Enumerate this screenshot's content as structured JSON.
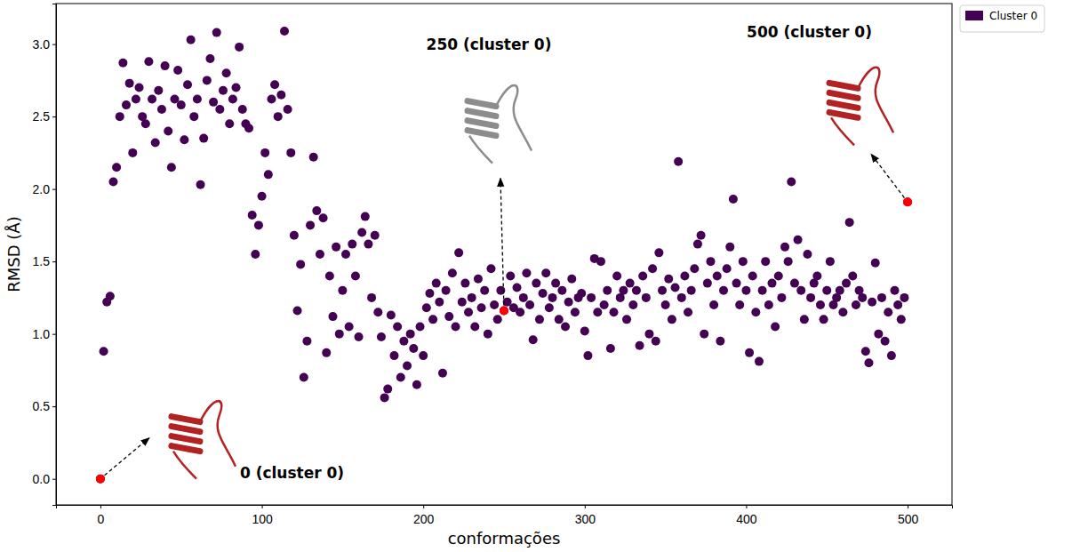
{
  "chart_data": {
    "type": "scatter",
    "x_label": "conformações",
    "y_label": "RMSD (Å)",
    "xlim": [
      -27.5,
      527.5
    ],
    "ylim": [
      -0.18,
      3.28
    ],
    "xticks": [
      0,
      100,
      200,
      300,
      400,
      500
    ],
    "yticks": [
      {
        "value": 0,
        "label": "0.0"
      },
      0.5,
      {
        "value": 1,
        "label": "1.0"
      },
      1.5,
      {
        "value": 2,
        "label": "2.0"
      },
      2.5,
      {
        "value": 3,
        "label": "3.0"
      }
    ],
    "grid": false,
    "legend": "outside",
    "series": [
      {
        "name": "Cluster 0",
        "color": "#440154",
        "marker": "circle",
        "x": [
          0,
          2,
          4,
          6,
          8,
          10,
          12,
          14,
          16,
          18,
          20,
          22,
          24,
          26,
          28,
          30,
          32,
          34,
          36,
          38,
          40,
          42,
          44,
          46,
          48,
          50,
          52,
          54,
          56,
          58,
          60,
          62,
          64,
          66,
          68,
          70,
          72,
          74,
          76,
          78,
          80,
          82,
          84,
          86,
          88,
          90,
          92,
          94,
          96,
          98,
          100,
          102,
          104,
          106,
          108,
          110,
          112,
          114,
          116,
          118,
          120,
          122,
          124,
          126,
          128,
          130,
          132,
          134,
          136,
          138,
          140,
          142,
          144,
          146,
          148,
          150,
          152,
          154,
          156,
          158,
          160,
          162,
          164,
          166,
          168,
          170,
          172,
          174,
          176,
          178,
          180,
          182,
          184,
          186,
          188,
          190,
          192,
          194,
          196,
          198,
          200,
          202,
          204,
          206,
          208,
          210,
          212,
          214,
          216,
          218,
          220,
          222,
          224,
          226,
          228,
          230,
          232,
          234,
          236,
          238,
          240,
          242,
          244,
          246,
          248,
          250,
          252,
          254,
          256,
          258,
          260,
          262,
          264,
          266,
          268,
          270,
          272,
          274,
          276,
          278,
          280,
          282,
          284,
          286,
          288,
          290,
          292,
          294,
          296,
          298,
          300,
          302,
          304,
          306,
          308,
          310,
          312,
          314,
          316,
          318,
          320,
          322,
          324,
          326,
          328,
          330,
          332,
          334,
          336,
          338,
          340,
          342,
          344,
          346,
          348,
          350,
          352,
          354,
          356,
          358,
          360,
          362,
          364,
          366,
          368,
          370,
          372,
          374,
          376,
          378,
          380,
          382,
          384,
          386,
          388,
          390,
          392,
          394,
          396,
          398,
          400,
          402,
          404,
          406,
          408,
          410,
          412,
          414,
          416,
          418,
          420,
          422,
          424,
          426,
          428,
          430,
          432,
          434,
          436,
          438,
          440,
          442,
          444,
          446,
          448,
          450,
          452,
          454,
          456,
          458,
          460,
          462,
          464,
          466,
          468,
          470,
          472,
          474,
          476,
          478,
          480,
          482,
          484,
          486,
          488,
          490,
          492,
          494,
          496,
          498,
          500
        ],
        "values": [
          0.0,
          0.88,
          1.22,
          1.26,
          2.05,
          2.15,
          2.5,
          2.87,
          2.58,
          2.73,
          2.25,
          2.62,
          2.7,
          2.5,
          2.45,
          2.88,
          2.62,
          2.32,
          2.68,
          2.55,
          2.85,
          2.4,
          2.15,
          2.62,
          2.82,
          2.58,
          2.34,
          2.72,
          3.03,
          2.5,
          2.62,
          2.03,
          2.35,
          2.75,
          2.9,
          2.6,
          3.08,
          2.55,
          2.68,
          2.8,
          2.45,
          2.62,
          2.7,
          2.98,
          2.55,
          2.45,
          2.42,
          1.82,
          1.55,
          1.75,
          1.95,
          2.25,
          2.1,
          2.62,
          2.72,
          2.5,
          2.65,
          3.09,
          2.55,
          2.25,
          1.68,
          1.16,
          1.48,
          0.7,
          0.95,
          1.75,
          2.22,
          1.85,
          1.55,
          1.8,
          0.87,
          1.4,
          1.12,
          1.6,
          1.0,
          1.3,
          1.55,
          1.05,
          1.62,
          1.4,
          0.98,
          1.7,
          1.81,
          1.62,
          1.25,
          1.68,
          1.15,
          0.98,
          0.56,
          0.62,
          1.13,
          0.85,
          1.05,
          0.7,
          0.95,
          0.78,
          1.0,
          0.9,
          0.65,
          1.05,
          0.85,
          1.18,
          1.28,
          1.1,
          1.35,
          1.22,
          0.73,
          1.3,
          1.12,
          1.42,
          1.05,
          1.56,
          1.22,
          1.35,
          1.15,
          1.25,
          1.05,
          1.38,
          1.18,
          1.3,
          1.0,
          1.45,
          1.2,
          1.1,
          1.3,
          1.16,
          1.22,
          1.4,
          1.18,
          1.32,
          1.15,
          1.25,
          1.42,
          1.2,
          0.96,
          1.35,
          1.1,
          1.28,
          1.42,
          1.18,
          1.25,
          1.35,
          1.1,
          1.3,
          1.05,
          1.22,
          1.38,
          1.15,
          1.25,
          1.28,
          1.02,
          0.85,
          1.25,
          1.52,
          1.15,
          1.5,
          1.2,
          1.3,
          0.9,
          1.15,
          1.4,
          1.25,
          1.3,
          1.1,
          1.35,
          1.2,
          1.3,
          0.92,
          1.4,
          1.25,
          1.0,
          1.45,
          0.95,
          1.56,
          1.3,
          1.2,
          1.38,
          1.1,
          1.32,
          2.19,
          1.25,
          1.4,
          1.15,
          1.3,
          1.45,
          1.62,
          1.68,
          1.0,
          1.35,
          1.5,
          1.2,
          1.4,
          0.95,
          1.3,
          1.45,
          1.6,
          1.93,
          1.35,
          1.2,
          1.5,
          1.3,
          0.87,
          1.4,
          1.15,
          0.81,
          1.3,
          1.5,
          1.2,
          1.35,
          1.05,
          1.4,
          1.25,
          1.6,
          1.5,
          2.05,
          1.35,
          1.65,
          1.3,
          1.1,
          1.55,
          1.25,
          1.35,
          1.4,
          1.2,
          1.1,
          1.3,
          1.5,
          1.2,
          1.25,
          1.3,
          1.15,
          1.35,
          1.77,
          1.4,
          1.2,
          1.3,
          1.25,
          0.88,
          0.8,
          1.22,
          1.49,
          1.0,
          1.25,
          0.95,
          1.15,
          0.85,
          1.3,
          1.2,
          1.1,
          1.25,
          1.91
        ]
      }
    ],
    "annotations": [
      {
        "x": 0,
        "y": 0.0,
        "text": "0 (cluster 0)",
        "color": "#ff0000"
      },
      {
        "x": 250,
        "y": 1.16,
        "text": "250 (cluster 0)",
        "color": "#ff0000"
      },
      {
        "x": 500,
        "y": 1.91,
        "text": "500 (cluster 0)",
        "color": "#ff0000"
      }
    ]
  }
}
